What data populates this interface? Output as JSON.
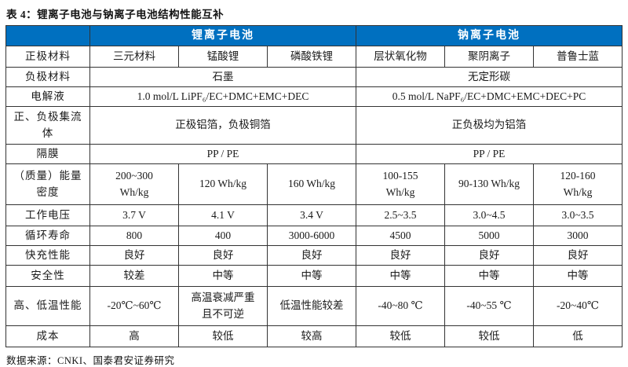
{
  "title": "表 4：锂离子电池与钠离子电池结构性能互补",
  "colors": {
    "header_bg": "#0070C0",
    "header_text": "#FFFFFF",
    "border": "#333333",
    "text": "#1A1A1A"
  },
  "header": {
    "lithium": "锂离子电池",
    "sodium": "钠离子电池"
  },
  "rows": [
    {
      "label": "正极材料",
      "cells": [
        "三元材料",
        "锰酸锂",
        "磷酸铁锂",
        "层状氧化物",
        "聚阴离子",
        "普鲁士蓝"
      ]
    },
    {
      "label": "负极材料",
      "cells": [
        "石墨",
        "无定形碳"
      ]
    },
    {
      "label": "电解液",
      "cells": [
        "1.0 mol/L LiPF₆/EC+DMC+EMC+DEC",
        "0.5 mol/L NaPF₆/EC+DMC+EMC+DEC+PC"
      ]
    },
    {
      "label": "正、负极集流\n体",
      "cells": [
        "正极铝箔，负极铜箔",
        "正负极均为铝箔"
      ]
    },
    {
      "label": "隔膜",
      "cells": [
        "PP / PE",
        "PP / PE"
      ]
    },
    {
      "label": "（质量）能量\n密度",
      "cells": [
        "200~300\nWh/kg",
        "120 Wh/kg",
        "160 Wh/kg",
        "100-155\nWh/kg",
        "90-130 Wh/kg",
        "120-160\nWh/kg"
      ]
    },
    {
      "label": "工作电压",
      "cells": [
        "3.7 V",
        "4.1 V",
        "3.4 V",
        "2.5~3.5",
        "3.0~4.5",
        "3.0~3.5"
      ]
    },
    {
      "label": "循环寿命",
      "cells": [
        "800",
        "400",
        "3000-6000",
        "4500",
        "5000",
        "3000"
      ]
    },
    {
      "label": "快充性能",
      "cells": [
        "良好",
        "良好",
        "良好",
        "良好",
        "良好",
        "良好"
      ]
    },
    {
      "label": "安全性",
      "cells": [
        "较差",
        "中等",
        "中等",
        "中等",
        "中等",
        "中等"
      ]
    },
    {
      "label": "高、低温性能",
      "cells": [
        "-20℃~60℃",
        "高温衰减严重\n且不可逆",
        "低温性能较差",
        "-40~80 ℃",
        "-40~55 ℃",
        "-20~40℃"
      ]
    },
    {
      "label": "成本",
      "cells": [
        "高",
        "较低",
        "较高",
        "较低",
        "较低",
        "低"
      ]
    }
  ],
  "source": "数据来源：CNKI、国泰君安证券研究"
}
